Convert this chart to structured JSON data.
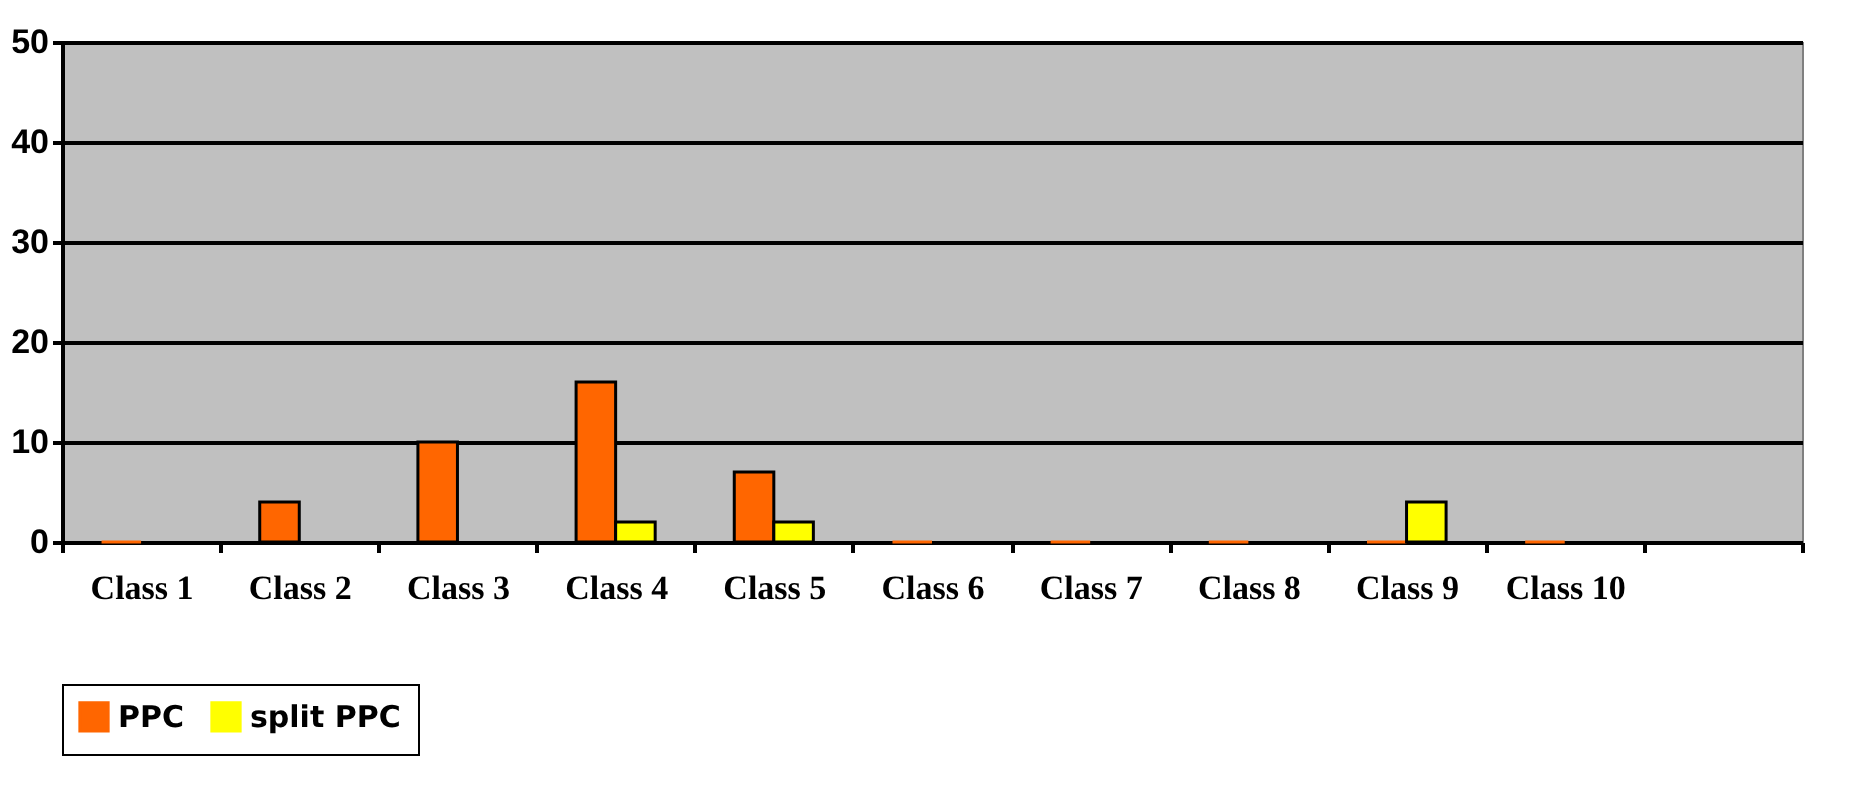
{
  "chart_data": {
    "type": "bar",
    "categories": [
      "Class 1",
      "Class 2",
      "Class 3",
      "Class 4",
      "Class 5",
      "Class 6",
      "Class 7",
      "Class 8",
      "Class 9",
      "Class 10",
      null
    ],
    "series": [
      {
        "name": "PPC",
        "color": "#ff6600",
        "values": [
          0,
          4,
          10,
          16,
          7,
          0,
          0,
          0,
          0,
          0,
          null
        ]
      },
      {
        "name": "split PPC",
        "color": "#ffff00",
        "values": [
          null,
          null,
          null,
          2,
          2,
          null,
          null,
          null,
          4,
          null,
          null
        ]
      }
    ],
    "ylim": [
      0,
      50
    ],
    "yticks": [
      0,
      10,
      20,
      30,
      40,
      50
    ],
    "grid": "y",
    "legend": "bottom"
  }
}
